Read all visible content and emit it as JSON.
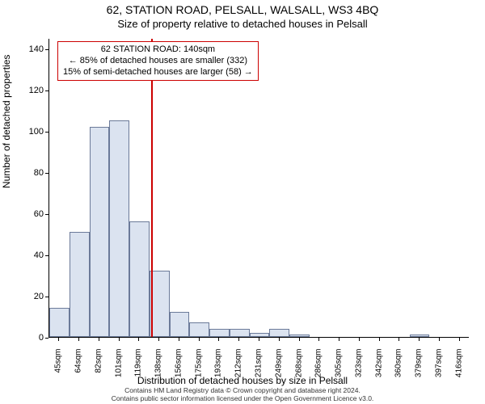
{
  "titles": {
    "line1": "62, STATION ROAD, PELSALL, WALSALL, WS3 4BQ",
    "line2": "Size of property relative to detached houses in Pelsall"
  },
  "axes": {
    "ylabel": "Number of detached properties",
    "xlabel": "Distribution of detached houses by size in Pelsall",
    "ylim": [
      0,
      145
    ],
    "yticks": [
      0,
      20,
      40,
      60,
      80,
      100,
      120,
      140
    ],
    "x_categories": [
      "45sqm",
      "64sqm",
      "82sqm",
      "101sqm",
      "119sqm",
      "138sqm",
      "156sqm",
      "175sqm",
      "193sqm",
      "212sqm",
      "231sqm",
      "249sqm",
      "268sqm",
      "286sqm",
      "305sqm",
      "323sqm",
      "342sqm",
      "360sqm",
      "379sqm",
      "397sqm",
      "416sqm"
    ]
  },
  "chart": {
    "type": "histogram",
    "values": [
      14,
      51,
      102,
      105,
      56,
      32,
      12,
      7,
      4,
      4,
      2,
      4,
      1,
      0,
      0,
      0,
      0,
      0,
      1,
      0,
      0
    ],
    "bar_fill": "#dbe3f0",
    "bar_stroke": "#6b7a99",
    "bar_stroke_width": 1,
    "bar_width_ratio": 1.0,
    "background": "#ffffff"
  },
  "marker": {
    "x_category_index_after": 5,
    "line_color": "#cc0000",
    "line_width": 2,
    "legend": {
      "line1": "62 STATION ROAD: 140sqm",
      "line2": "← 85% of detached houses are smaller (332)",
      "line3": "15% of semi-detached houses are larger (58) →",
      "border_color": "#cc0000",
      "border_width": 1
    }
  },
  "credits": {
    "line1": "Contains HM Land Registry data © Crown copyright and database right 2024.",
    "line2": "Contains public sector information licensed under the Open Government Licence v3.0."
  },
  "fonts": {
    "title_size_pt": 14,
    "subtitle_size_pt": 13,
    "axis_label_size_pt": 12,
    "tick_size_pt": 11,
    "legend_size_pt": 11,
    "credit_size_pt": 8.5
  }
}
